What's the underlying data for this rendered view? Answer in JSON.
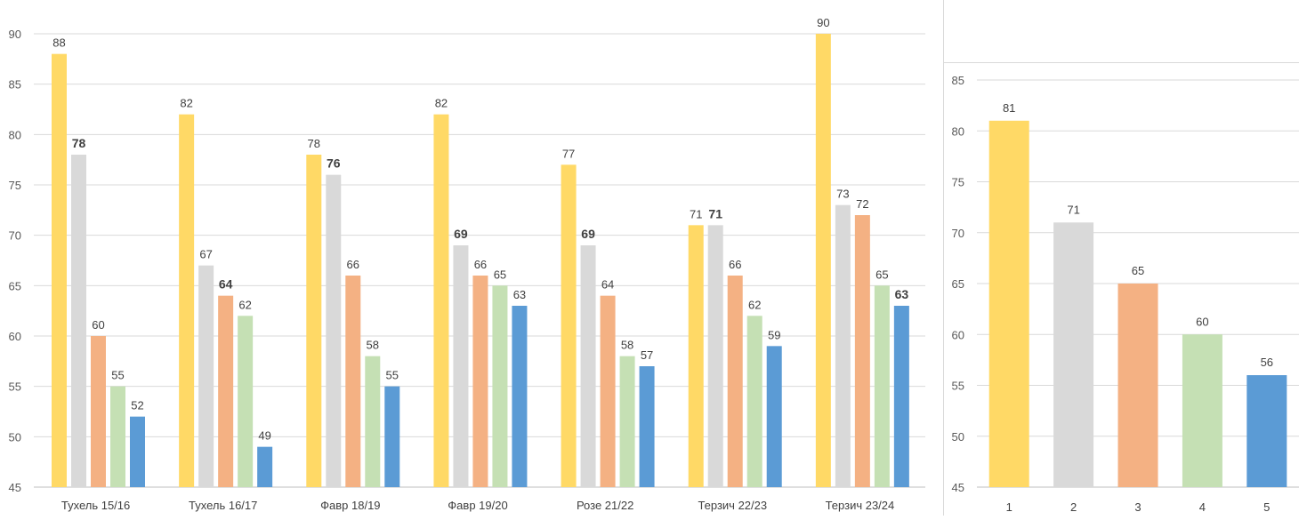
{
  "chart_data": [
    {
      "type": "bar",
      "categories": [
        "Тухель 15/16",
        "Тухель 16/17",
        "Фавр 18/19",
        "Фавр 19/20",
        "Розе 21/22",
        "Терзич 22/23",
        "Терзич 23/24"
      ],
      "series": [
        {
          "values": [
            88,
            82,
            78,
            82,
            77,
            71,
            90
          ],
          "color": "#FFD966"
        },
        {
          "values": [
            78,
            67,
            76,
            69,
            69,
            71,
            73
          ],
          "color": "#D9D9D9"
        },
        {
          "values": [
            60,
            64,
            66,
            66,
            64,
            66,
            72
          ],
          "color": "#F4B183"
        },
        {
          "values": [
            55,
            62,
            58,
            65,
            58,
            62,
            65
          ],
          "color": "#C5E0B4"
        },
        {
          "values": [
            52,
            49,
            55,
            63,
            57,
            59,
            63
          ],
          "color": "#5B9BD5"
        }
      ],
      "ylim": [
        45,
        90
      ],
      "yticks": [
        45,
        50,
        55,
        60,
        65,
        70,
        75,
        80,
        85,
        90
      ],
      "grid": true,
      "bold_labels": [
        [
          1,
          0
        ],
        [
          1,
          2
        ],
        [
          2,
          1
        ],
        [
          1,
          3
        ],
        [
          1,
          4
        ],
        [
          1,
          5
        ],
        [
          4,
          6
        ],
        [
          2,
          1
        ]
      ]
    },
    {
      "type": "bar",
      "categories": [
        "1",
        "2",
        "3",
        "4",
        "5"
      ],
      "values": [
        81,
        71,
        65,
        60,
        56
      ],
      "colors": [
        "#FFD966",
        "#D9D9D9",
        "#F4B183",
        "#C5E0B4",
        "#5B9BD5"
      ],
      "ylim": [
        45,
        85
      ],
      "yticks": [
        45,
        50,
        55,
        60,
        65,
        70,
        75,
        80,
        85
      ],
      "grid": true
    }
  ]
}
